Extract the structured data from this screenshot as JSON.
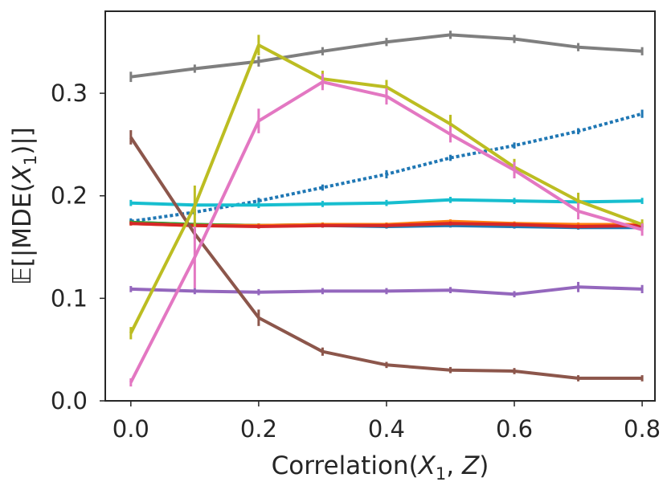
{
  "chart_data": {
    "type": "line",
    "title": "",
    "xlabel": "Correlation(X₁, Z)",
    "xlabel_parts": [
      "Correlation(",
      "X",
      "1",
      ", ",
      "Z",
      ")"
    ],
    "ylabel": "𝔼[|MDE(X₁)|]",
    "ylabel_parts": [
      "𝔼[|MDE(",
      "X",
      "1",
      ")|]"
    ],
    "xlim": [
      -0.04,
      0.82
    ],
    "ylim": [
      0.0,
      0.38
    ],
    "xticks": [
      0.0,
      0.2,
      0.4,
      0.6,
      0.8
    ],
    "xtick_labels": [
      "0.0",
      "0.2",
      "0.4",
      "0.6",
      "0.8"
    ],
    "yticks": [
      0.0,
      0.1,
      0.2,
      0.3
    ],
    "ytick_labels": [
      "0.0",
      "0.1",
      "0.2",
      "0.3"
    ],
    "grid": false,
    "x": [
      0.0,
      0.1,
      0.2,
      0.3,
      0.4,
      0.5,
      0.6,
      0.7,
      0.8
    ],
    "series": [
      {
        "name": "gray",
        "color": "#7f7f7f",
        "dashed": false,
        "values": [
          0.316,
          0.324,
          0.331,
          0.341,
          0.35,
          0.357,
          0.353,
          0.345,
          0.341
        ],
        "errors": [
          0.005,
          0.004,
          0.005,
          0.004,
          0.004,
          0.004,
          0.004,
          0.004,
          0.004
        ]
      },
      {
        "name": "blue dotted",
        "color": "#1f77b4",
        "dashed": true,
        "values": [
          0.175,
          0.184,
          0.195,
          0.208,
          0.221,
          0.237,
          0.249,
          0.263,
          0.28
        ],
        "errors": [
          0.003,
          0.003,
          0.003,
          0.003,
          0.004,
          0.003,
          0.003,
          0.003,
          0.004
        ]
      },
      {
        "name": "cyan",
        "color": "#17becf",
        "dashed": false,
        "values": [
          0.193,
          0.191,
          0.191,
          0.192,
          0.193,
          0.196,
          0.195,
          0.194,
          0.195
        ],
        "errors": [
          0.003,
          0.003,
          0.003,
          0.003,
          0.003,
          0.003,
          0.003,
          0.003,
          0.003
        ]
      },
      {
        "name": "blue",
        "color": "#1f77b4",
        "dashed": false,
        "values": [
          0.174,
          0.172,
          0.171,
          0.171,
          0.17,
          0.171,
          0.17,
          0.169,
          0.169
        ],
        "errors": [
          0.002,
          0.002,
          0.002,
          0.002,
          0.002,
          0.002,
          0.002,
          0.002,
          0.002
        ]
      },
      {
        "name": "green",
        "color": "#2ca02c",
        "dashed": false,
        "values": [
          0.174,
          0.172,
          0.171,
          0.172,
          0.171,
          0.173,
          0.172,
          0.171,
          0.171
        ],
        "errors": [
          0.002,
          0.002,
          0.002,
          0.002,
          0.002,
          0.002,
          0.002,
          0.002,
          0.002
        ]
      },
      {
        "name": "orange",
        "color": "#ff7f0e",
        "dashed": false,
        "values": [
          0.173,
          0.171,
          0.171,
          0.172,
          0.172,
          0.175,
          0.173,
          0.172,
          0.172
        ],
        "errors": [
          0.002,
          0.002,
          0.002,
          0.002,
          0.002,
          0.002,
          0.002,
          0.002,
          0.002
        ]
      },
      {
        "name": "red",
        "color": "#d62728",
        "dashed": false,
        "values": [
          0.173,
          0.171,
          0.17,
          0.171,
          0.171,
          0.173,
          0.172,
          0.17,
          0.171
        ],
        "errors": [
          0.002,
          0.002,
          0.002,
          0.002,
          0.002,
          0.002,
          0.002,
          0.002,
          0.002
        ]
      },
      {
        "name": "purple",
        "color": "#9467bd",
        "dashed": false,
        "values": [
          0.109,
          0.107,
          0.106,
          0.107,
          0.107,
          0.108,
          0.104,
          0.111,
          0.109
        ],
        "errors": [
          0.003,
          0.003,
          0.003,
          0.003,
          0.003,
          0.003,
          0.003,
          0.005,
          0.004
        ]
      },
      {
        "name": "brown",
        "color": "#8c564b",
        "dashed": false,
        "values": [
          0.257,
          0.163,
          0.081,
          0.048,
          0.035,
          0.03,
          0.029,
          0.022,
          0.022
        ],
        "errors": [
          0.007,
          0.005,
          0.008,
          0.004,
          0.003,
          0.003,
          0.003,
          0.003,
          0.003
        ]
      },
      {
        "name": "olive",
        "color": "#bcbd22",
        "dashed": false,
        "values": [
          0.066,
          0.19,
          0.347,
          0.314,
          0.306,
          0.27,
          0.228,
          0.195,
          0.172
        ],
        "errors": [
          0.006,
          0.02,
          0.01,
          0.008,
          0.007,
          0.009,
          0.008,
          0.008,
          0.005
        ]
      },
      {
        "name": "pink",
        "color": "#e377c2",
        "dashed": false,
        "values": [
          0.018,
          0.14,
          0.273,
          0.311,
          0.297,
          0.26,
          0.225,
          0.185,
          0.167
        ],
        "errors": [
          0.004,
          0.03,
          0.012,
          0.008,
          0.008,
          0.008,
          0.008,
          0.008,
          0.006
        ]
      }
    ]
  }
}
